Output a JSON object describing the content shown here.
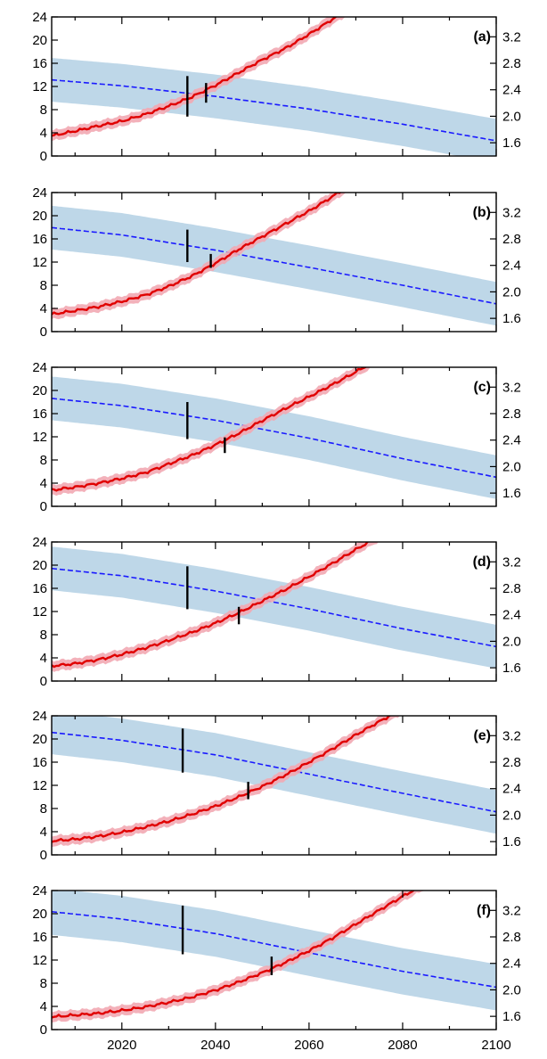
{
  "colors": {
    "red_line": "#e00000",
    "red_band": "#f2a8b3",
    "blue_line": "#1a1aff",
    "blue_band": "#b7d3e6",
    "marker": "#000000"
  },
  "chart_data": {
    "type": "line",
    "layout": "6 stacked panels sharing x axis, dual y axes",
    "x_ticks": [
      2020,
      2040,
      2060,
      2080,
      2100
    ],
    "xlim": [
      2005,
      2100
    ],
    "left_axis": {
      "ylim": [
        0,
        24
      ],
      "ticks": [
        0,
        4,
        8,
        12,
        16,
        20,
        24
      ]
    },
    "right_axis": {
      "ylim": [
        1.4,
        3.5
      ],
      "ticks": [
        1.6,
        2.0,
        2.4,
        2.8,
        3.2
      ]
    },
    "grid": false,
    "legend": "none",
    "panels": [
      {
        "label": "(a)",
        "red": {
          "axis": "left",
          "style": "solid",
          "band_halfwidth": 0.9,
          "x": [
            2005,
            2010,
            2015,
            2020,
            2025,
            2030,
            2035,
            2040,
            2045,
            2050,
            2055,
            2060,
            2065,
            2070
          ],
          "y": [
            3.5,
            4.3,
            5.2,
            6.0,
            7.2,
            8.6,
            10.2,
            12.2,
            14.4,
            16.6,
            18.6,
            21.0,
            23.6,
            26.0
          ]
        },
        "blue": {
          "axis": "right",
          "style": "dashed",
          "band_halfwidth": 0.33,
          "x": [
            2005,
            2020,
            2040,
            2060,
            2080,
            2100
          ],
          "y": [
            2.55,
            2.46,
            2.3,
            2.11,
            1.88,
            1.63
          ]
        },
        "markers": [
          {
            "x": 2034,
            "axis": "left",
            "y0": 6.8,
            "y1": 13.8
          },
          {
            "x": 2038,
            "axis": "left",
            "y0": 9.2,
            "y1": 12.6
          }
        ]
      },
      {
        "label": "(b)",
        "red": {
          "axis": "left",
          "style": "solid",
          "band_halfwidth": 0.9,
          "x": [
            2005,
            2010,
            2015,
            2020,
            2025,
            2030,
            2035,
            2040,
            2045,
            2050,
            2055,
            2060,
            2065,
            2070
          ],
          "y": [
            3.0,
            3.6,
            4.3,
            5.2,
            6.3,
            7.8,
            9.6,
            11.8,
            14.2,
            16.4,
            18.6,
            20.8,
            23.3,
            26.0
          ]
        },
        "blue": {
          "axis": "right",
          "style": "dashed",
          "band_halfwidth": 0.33,
          "x": [
            2005,
            2020,
            2040,
            2060,
            2080,
            2100
          ],
          "y": [
            2.97,
            2.86,
            2.63,
            2.37,
            2.1,
            1.82
          ]
        },
        "markers": [
          {
            "x": 2034,
            "axis": "left",
            "y0": 12.0,
            "y1": 17.6
          },
          {
            "x": 2039,
            "axis": "left",
            "y0": 11.0,
            "y1": 13.4
          }
        ]
      },
      {
        "label": "(c)",
        "red": {
          "axis": "left",
          "style": "solid",
          "band_halfwidth": 0.9,
          "x": [
            2005,
            2010,
            2015,
            2020,
            2025,
            2030,
            2035,
            2040,
            2045,
            2050,
            2055,
            2060,
            2065,
            2070,
            2075
          ],
          "y": [
            2.8,
            3.3,
            4.0,
            4.8,
            5.8,
            7.3,
            8.8,
            10.6,
            12.6,
            14.8,
            16.9,
            18.9,
            21.0,
            23.2,
            25.5
          ]
        },
        "blue": {
          "axis": "right",
          "style": "dashed",
          "band_halfwidth": 0.33,
          "x": [
            2005,
            2020,
            2040,
            2060,
            2080,
            2100
          ],
          "y": [
            3.03,
            2.92,
            2.7,
            2.43,
            2.12,
            1.84
          ]
        },
        "markers": [
          {
            "x": 2034,
            "axis": "left",
            "y0": 11.6,
            "y1": 18.0
          },
          {
            "x": 2042,
            "axis": "left",
            "y0": 9.2,
            "y1": 11.9
          }
        ]
      },
      {
        "label": "(d)",
        "red": {
          "axis": "left",
          "style": "solid",
          "band_halfwidth": 0.9,
          "x": [
            2005,
            2010,
            2015,
            2020,
            2025,
            2030,
            2035,
            2040,
            2045,
            2050,
            2055,
            2060,
            2065,
            2070,
            2075
          ],
          "y": [
            2.6,
            3.0,
            3.7,
            4.6,
            5.7,
            7.0,
            8.4,
            10.0,
            11.8,
            13.8,
            15.8,
            18.0,
            20.3,
            22.7,
            25.0
          ]
        },
        "blue": {
          "axis": "right",
          "style": "dashed",
          "band_halfwidth": 0.33,
          "x": [
            2005,
            2020,
            2040,
            2060,
            2080,
            2100
          ],
          "y": [
            3.1,
            2.99,
            2.76,
            2.49,
            2.19,
            1.92
          ]
        },
        "markers": [
          {
            "x": 2034,
            "axis": "left",
            "y0": 12.4,
            "y1": 19.8
          },
          {
            "x": 2045,
            "axis": "left",
            "y0": 9.8,
            "y1": 12.8
          }
        ]
      },
      {
        "label": "(e)",
        "red": {
          "axis": "left",
          "style": "solid",
          "band_halfwidth": 0.9,
          "x": [
            2005,
            2010,
            2015,
            2020,
            2025,
            2030,
            2035,
            2040,
            2045,
            2050,
            2055,
            2060,
            2065,
            2070,
            2075,
            2080
          ],
          "y": [
            2.4,
            2.7,
            3.2,
            3.9,
            4.8,
            5.8,
            7.0,
            8.4,
            10.0,
            11.8,
            13.8,
            16.0,
            18.3,
            20.7,
            23.0,
            25.2
          ]
        },
        "blue": {
          "axis": "right",
          "style": "dashed",
          "band_halfwidth": 0.33,
          "x": [
            2005,
            2020,
            2040,
            2060,
            2080,
            2100
          ],
          "y": [
            3.25,
            3.13,
            2.91,
            2.62,
            2.33,
            2.05
          ]
        },
        "markers": [
          {
            "x": 2033,
            "axis": "left",
            "y0": 14.2,
            "y1": 21.8
          },
          {
            "x": 2047,
            "axis": "left",
            "y0": 9.6,
            "y1": 12.6
          }
        ]
      },
      {
        "label": "(f)",
        "red": {
          "axis": "left",
          "style": "solid",
          "band_halfwidth": 0.9,
          "x": [
            2005,
            2010,
            2015,
            2020,
            2025,
            2030,
            2035,
            2040,
            2045,
            2050,
            2055,
            2060,
            2065,
            2070,
            2075,
            2080,
            2085
          ],
          "y": [
            2.2,
            2.5,
            2.8,
            3.3,
            3.9,
            4.7,
            5.6,
            6.8,
            8.2,
            9.8,
            11.6,
            13.6,
            15.8,
            18.2,
            20.6,
            23.0,
            25.2
          ]
        },
        "blue": {
          "axis": "right",
          "style": "dashed",
          "band_halfwidth": 0.35,
          "x": [
            2005,
            2020,
            2040,
            2060,
            2080,
            2100
          ],
          "y": [
            3.18,
            3.07,
            2.85,
            2.56,
            2.28,
            2.04
          ]
        },
        "markers": [
          {
            "x": 2033,
            "axis": "left",
            "y0": 13.0,
            "y1": 21.4
          },
          {
            "x": 2052,
            "axis": "left",
            "y0": 9.4,
            "y1": 12.6
          }
        ]
      }
    ]
  }
}
